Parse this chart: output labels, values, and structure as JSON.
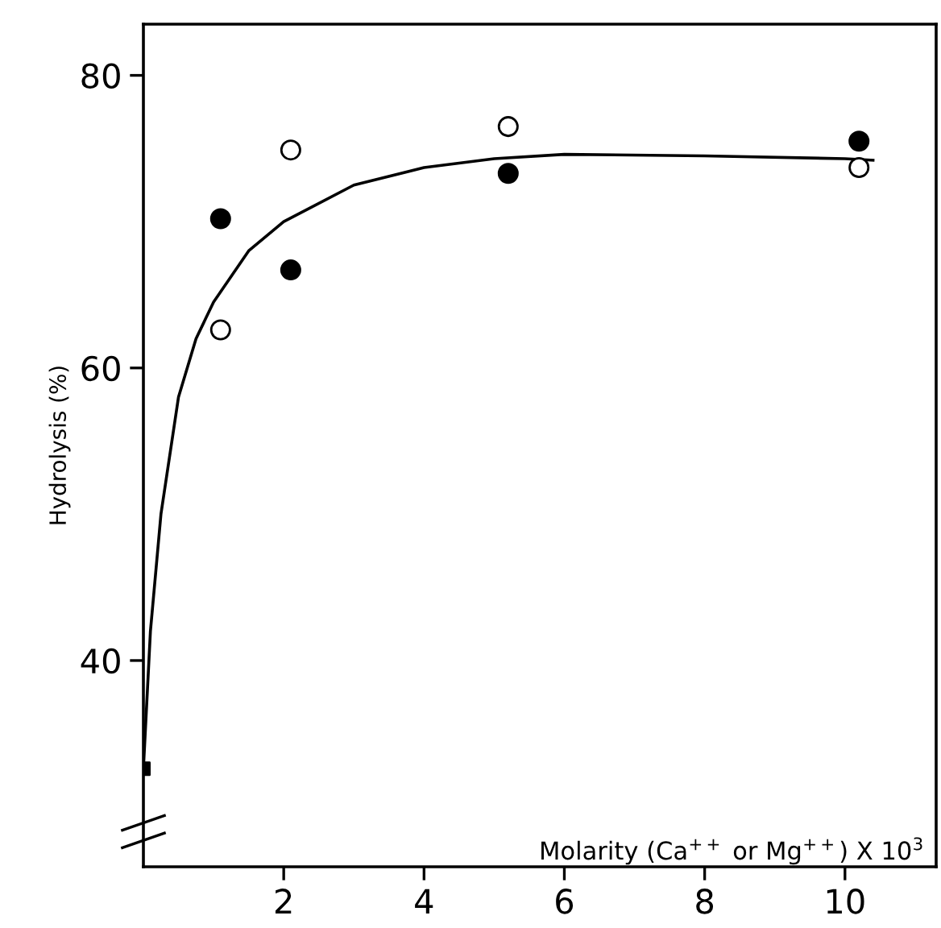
{
  "chart_data": {
    "type": "scatter",
    "ylabel": "Hydrolysis (%)",
    "xlabel": "Molarity (Ca$^{++}$ or Mg$^{++}$) X 10$^{3}$",
    "xlim": [
      0,
      11.3
    ],
    "ylim": [
      25.9,
      83.5
    ],
    "xticks": [
      2,
      4,
      6,
      8,
      10
    ],
    "yticks": [
      40,
      60,
      80
    ],
    "grid": false,
    "legend": false,
    "series": [
      {
        "type": "line",
        "color": "#000000",
        "marker": "none",
        "line_style": "solid",
        "x": [
          0,
          0.1,
          0.25,
          0.5,
          0.75,
          1.0,
          1.5,
          2.0,
          3.0,
          4.0,
          5.0,
          6.0,
          8.0,
          10.0,
          10.4
        ],
        "values": [
          32.6,
          42,
          50,
          58,
          62,
          64.5,
          68,
          70,
          72.5,
          73.7,
          74.3,
          74.6,
          74.5,
          74.3,
          74.2
        ]
      },
      {
        "color": "#000000",
        "marker": "circle",
        "x": [
          1.1,
          2.1,
          5.2,
          10.2
        ],
        "values": [
          70.2,
          66.7,
          73.3,
          75.5
        ]
      },
      {
        "color": "#ffffff",
        "marker": "circle",
        "x": [
          1.1,
          2.1,
          5.2,
          10.2
        ],
        "values": [
          62.6,
          74.9,
          76.5,
          73.7
        ]
      },
      {
        "color": "#000000",
        "marker": "square",
        "x": [
          0
        ],
        "values": [
          32.6
        ]
      }
    ]
  }
}
